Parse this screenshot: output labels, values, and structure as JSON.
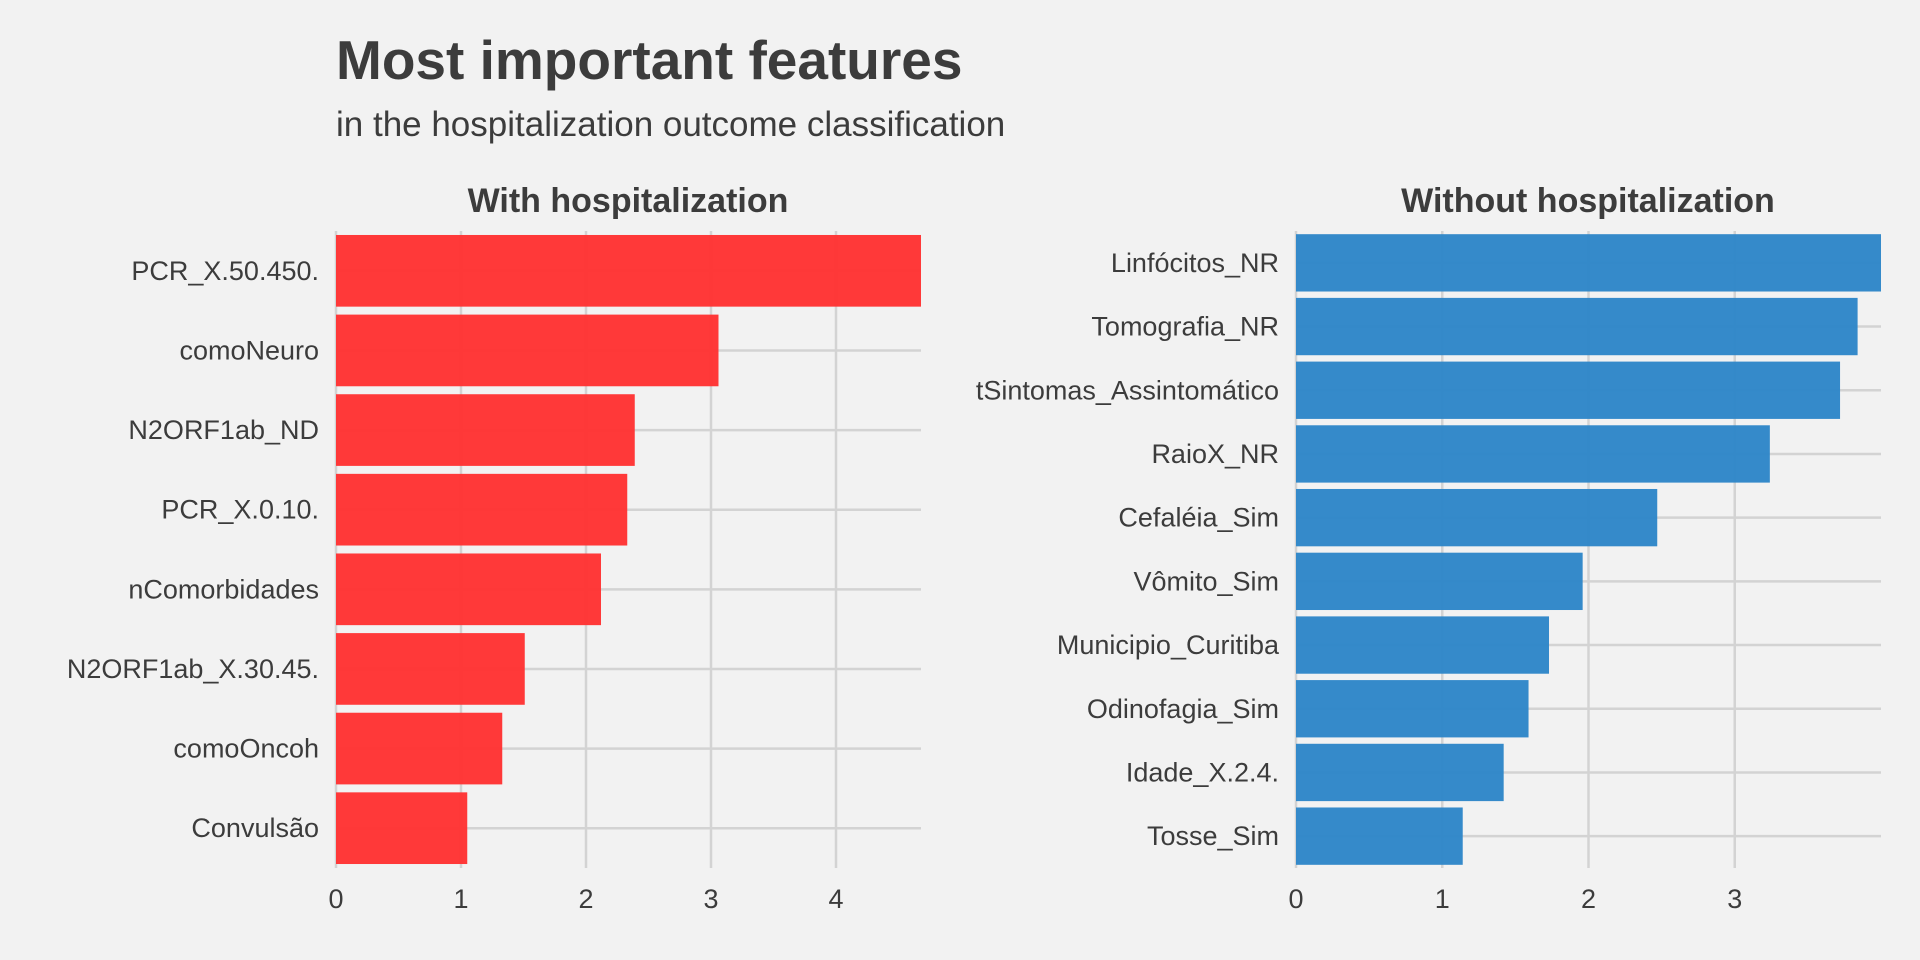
{
  "title": "Most important features",
  "subtitle": "in the hospitalization outcome classification",
  "colors": {
    "background": "#f2f2f2",
    "grid": "#d3d3d3",
    "text": "#3c3c3c",
    "with_hospitalization": "#ff3333",
    "without_hospitalization": "#2e86c8"
  },
  "chart_data": [
    {
      "type": "bar",
      "orientation": "horizontal",
      "title": "With hospitalization",
      "color": "#ff3333",
      "categories": [
        "PCR_X.50.450.",
        "comoNeuro",
        "N2ORF1ab_ND",
        "PCR_X.0.10.",
        "nComorbidades",
        "N2ORF1ab_X.30.45.",
        "comoOncoh",
        "Convulsão"
      ],
      "values": [
        4.68,
        3.06,
        2.39,
        2.33,
        2.12,
        1.51,
        1.33,
        1.05
      ],
      "xlim": [
        0,
        4.68
      ],
      "xticks": [
        0,
        1,
        2,
        3,
        4
      ],
      "grid": true
    },
    {
      "type": "bar",
      "orientation": "horizontal",
      "title": "Without hospitalization",
      "color": "#2e86c8",
      "categories": [
        "Linfócitos_NR",
        "Tomografia_NR",
        "tSintomas_Assintomático",
        "RaioX_NR",
        "Cefaléia_Sim",
        "Vômito_Sim",
        "Municipio_Curitiba",
        "Odinofagia_Sim",
        "Idade_X.2.4.",
        "Tosse_Sim"
      ],
      "values": [
        4.0,
        3.84,
        3.72,
        3.24,
        2.47,
        1.96,
        1.73,
        1.59,
        1.42,
        1.14
      ],
      "xlim": [
        0,
        4.0
      ],
      "xticks": [
        0,
        1,
        2,
        3
      ],
      "grid": true
    }
  ]
}
